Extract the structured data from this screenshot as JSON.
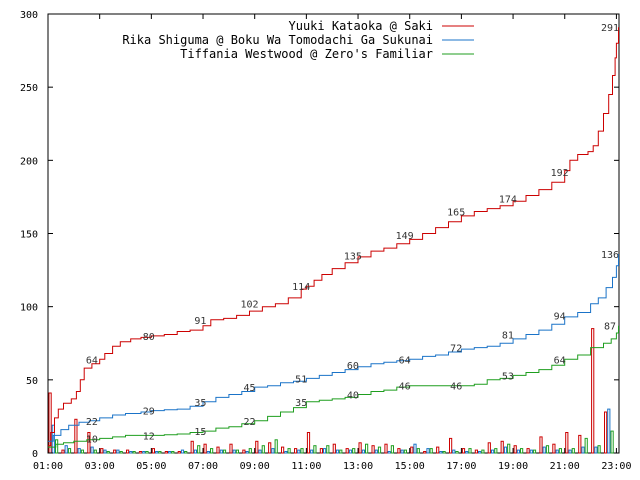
{
  "chart_data": {
    "type": "line",
    "title": "",
    "xlabel": "",
    "ylabel": "",
    "xlim": [
      1,
      23.1
    ],
    "ylim": [
      0,
      300
    ],
    "x_ticks": [
      "01:00",
      "03:00",
      "05:00",
      "07:00",
      "09:00",
      "11:00",
      "13:00",
      "15:00",
      "17:00",
      "19:00",
      "21:00",
      "23:00"
    ],
    "y_ticks": [
      "0",
      "50",
      "100",
      "150",
      "200",
      "250",
      "300"
    ],
    "legend_position": "top-right",
    "grid": false,
    "series": [
      {
        "name": "Yuuki Kataoka @ Saki",
        "color": "#cc0000",
        "points": [
          [
            1.0,
            5
          ],
          [
            1.1,
            14
          ],
          [
            1.25,
            24
          ],
          [
            1.4,
            30
          ],
          [
            1.6,
            34
          ],
          [
            1.9,
            37
          ],
          [
            2.1,
            42
          ],
          [
            2.25,
            50
          ],
          [
            2.4,
            58
          ],
          [
            2.7,
            61
          ],
          [
            3.0,
            64
          ],
          [
            3.2,
            68
          ],
          [
            3.5,
            73
          ],
          [
            3.8,
            76
          ],
          [
            4.2,
            78
          ],
          [
            4.6,
            79
          ],
          [
            5.0,
            80
          ],
          [
            5.5,
            81
          ],
          [
            6.0,
            83
          ],
          [
            6.5,
            84
          ],
          [
            7.0,
            87
          ],
          [
            7.3,
            91
          ],
          [
            7.8,
            92
          ],
          [
            8.3,
            94
          ],
          [
            8.8,
            97
          ],
          [
            9.3,
            100
          ],
          [
            9.8,
            102
          ],
          [
            10.3,
            106
          ],
          [
            10.8,
            112
          ],
          [
            11.0,
            114
          ],
          [
            11.3,
            118
          ],
          [
            11.6,
            122
          ],
          [
            12.0,
            126
          ],
          [
            12.5,
            130
          ],
          [
            13.0,
            134
          ],
          [
            13.5,
            138
          ],
          [
            14.0,
            140
          ],
          [
            14.5,
            143
          ],
          [
            15.0,
            146
          ],
          [
            15.5,
            150
          ],
          [
            16.0,
            154
          ],
          [
            16.5,
            158
          ],
          [
            17.0,
            162
          ],
          [
            17.5,
            165
          ],
          [
            18.0,
            167
          ],
          [
            18.5,
            169
          ],
          [
            19.0,
            172
          ],
          [
            19.5,
            176
          ],
          [
            20.0,
            180
          ],
          [
            20.5,
            185
          ],
          [
            21.0,
            193
          ],
          [
            21.2,
            200
          ],
          [
            21.5,
            204
          ],
          [
            21.9,
            206
          ],
          [
            22.1,
            210
          ],
          [
            22.3,
            220
          ],
          [
            22.5,
            232
          ],
          [
            22.7,
            245
          ],
          [
            22.85,
            258
          ],
          [
            22.95,
            270
          ],
          [
            23.0,
            280
          ],
          [
            23.08,
            291
          ]
        ]
      },
      {
        "name": "Rika Shiguma @ Boku Wa Tomodachi Ga Sukunai",
        "color": "#1a73c8",
        "points": [
          [
            1.0,
            8
          ],
          [
            1.2,
            12
          ],
          [
            1.5,
            16
          ],
          [
            1.8,
            19
          ],
          [
            2.2,
            21
          ],
          [
            2.6,
            22
          ],
          [
            3.0,
            24
          ],
          [
            3.5,
            26
          ],
          [
            4.0,
            27
          ],
          [
            4.6,
            28
          ],
          [
            5.0,
            29
          ],
          [
            5.5,
            29.5
          ],
          [
            6.0,
            30
          ],
          [
            6.5,
            32
          ],
          [
            7.0,
            35
          ],
          [
            7.5,
            38
          ],
          [
            8.0,
            40
          ],
          [
            8.5,
            42
          ],
          [
            9.0,
            45
          ],
          [
            9.5,
            46
          ],
          [
            10.0,
            48
          ],
          [
            10.5,
            49
          ],
          [
            11.0,
            51
          ],
          [
            11.5,
            53
          ],
          [
            12.0,
            55
          ],
          [
            12.5,
            57
          ],
          [
            13.0,
            59
          ],
          [
            13.5,
            61
          ],
          [
            14.0,
            62
          ],
          [
            14.5,
            63
          ],
          [
            15.0,
            64
          ],
          [
            15.5,
            66
          ],
          [
            16.0,
            67
          ],
          [
            16.5,
            69
          ],
          [
            17.0,
            71
          ],
          [
            17.5,
            72
          ],
          [
            18.0,
            73
          ],
          [
            18.5,
            75
          ],
          [
            19.0,
            78
          ],
          [
            19.5,
            81
          ],
          [
            20.0,
            84
          ],
          [
            20.5,
            88
          ],
          [
            21.0,
            93
          ],
          [
            21.5,
            96
          ],
          [
            22.0,
            102
          ],
          [
            22.3,
            106
          ],
          [
            22.6,
            113
          ],
          [
            22.85,
            120
          ],
          [
            23.0,
            128
          ],
          [
            23.08,
            136
          ]
        ]
      },
      {
        "name": "Tiffania Westwood @ Zero's Familiar",
        "color": "#1f9e1f",
        "points": [
          [
            1.0,
            4
          ],
          [
            1.3,
            6
          ],
          [
            1.6,
            7
          ],
          [
            2.0,
            8
          ],
          [
            2.5,
            9
          ],
          [
            3.0,
            10
          ],
          [
            3.5,
            11
          ],
          [
            4.0,
            12
          ],
          [
            4.5,
            12
          ],
          [
            5.0,
            12
          ],
          [
            5.5,
            12.5
          ],
          [
            6.0,
            13
          ],
          [
            6.5,
            14
          ],
          [
            7.0,
            15
          ],
          [
            7.5,
            17
          ],
          [
            8.0,
            18
          ],
          [
            8.5,
            20
          ],
          [
            9.0,
            22
          ],
          [
            9.5,
            25
          ],
          [
            10.0,
            28
          ],
          [
            10.5,
            31
          ],
          [
            11.0,
            35
          ],
          [
            11.5,
            36
          ],
          [
            12.0,
            37
          ],
          [
            12.5,
            38
          ],
          [
            13.0,
            40
          ],
          [
            13.5,
            42
          ],
          [
            14.0,
            43
          ],
          [
            14.5,
            45
          ],
          [
            15.0,
            46
          ],
          [
            15.5,
            46
          ],
          [
            16.0,
            46
          ],
          [
            16.5,
            46
          ],
          [
            17.0,
            46
          ],
          [
            17.5,
            47
          ],
          [
            18.0,
            50
          ],
          [
            18.5,
            51
          ],
          [
            19.0,
            53
          ],
          [
            19.5,
            55
          ],
          [
            20.0,
            57
          ],
          [
            20.5,
            60
          ],
          [
            21.0,
            64
          ],
          [
            21.5,
            67
          ],
          [
            22.0,
            72
          ],
          [
            22.5,
            75
          ],
          [
            22.8,
            78
          ],
          [
            23.0,
            82
          ],
          [
            23.08,
            87
          ]
        ]
      }
    ],
    "data_labels": [
      {
        "series": 0,
        "x": 2.7,
        "y": 64,
        "text": "64"
      },
      {
        "series": 0,
        "x": 4.9,
        "y": 80,
        "text": "80"
      },
      {
        "series": 0,
        "x": 6.9,
        "y": 91,
        "text": "91"
      },
      {
        "series": 0,
        "x": 8.8,
        "y": 102,
        "text": "102"
      },
      {
        "series": 0,
        "x": 10.8,
        "y": 114,
        "text": "114"
      },
      {
        "series": 0,
        "x": 12.8,
        "y": 135,
        "text": "135"
      },
      {
        "series": 0,
        "x": 14.8,
        "y": 149,
        "text": "149"
      },
      {
        "series": 0,
        "x": 16.8,
        "y": 165,
        "text": "165"
      },
      {
        "series": 0,
        "x": 18.8,
        "y": 174,
        "text": "174"
      },
      {
        "series": 0,
        "x": 20.8,
        "y": 192,
        "text": "192"
      },
      {
        "series": 0,
        "x": 22.75,
        "y": 291,
        "text": "291"
      },
      {
        "series": 1,
        "x": 2.7,
        "y": 22,
        "text": "22"
      },
      {
        "series": 1,
        "x": 4.9,
        "y": 29,
        "text": "29"
      },
      {
        "series": 1,
        "x": 6.9,
        "y": 35,
        "text": "35"
      },
      {
        "series": 1,
        "x": 8.8,
        "y": 45,
        "text": "45"
      },
      {
        "series": 1,
        "x": 10.8,
        "y": 51,
        "text": "51"
      },
      {
        "series": 1,
        "x": 12.8,
        "y": 60,
        "text": "60"
      },
      {
        "series": 1,
        "x": 14.8,
        "y": 64,
        "text": "64"
      },
      {
        "series": 1,
        "x": 16.8,
        "y": 72,
        "text": "72"
      },
      {
        "series": 1,
        "x": 18.8,
        "y": 81,
        "text": "81"
      },
      {
        "series": 1,
        "x": 20.8,
        "y": 94,
        "text": "94"
      },
      {
        "series": 1,
        "x": 22.75,
        "y": 136,
        "text": "136"
      },
      {
        "series": 2,
        "x": 2.7,
        "y": 10,
        "text": "10"
      },
      {
        "series": 2,
        "x": 4.9,
        "y": 12,
        "text": "12"
      },
      {
        "series": 2,
        "x": 6.9,
        "y": 15,
        "text": "15"
      },
      {
        "series": 2,
        "x": 8.8,
        "y": 22,
        "text": "22"
      },
      {
        "series": 2,
        "x": 10.8,
        "y": 35,
        "text": "35"
      },
      {
        "series": 2,
        "x": 12.8,
        "y": 40,
        "text": "40"
      },
      {
        "series": 2,
        "x": 14.8,
        "y": 46,
        "text": "46"
      },
      {
        "series": 2,
        "x": 16.8,
        "y": 46,
        "text": "46"
      },
      {
        "series": 2,
        "x": 18.8,
        "y": 53,
        "text": "53"
      },
      {
        "series": 2,
        "x": 20.8,
        "y": 64,
        "text": "64"
      },
      {
        "series": 2,
        "x": 22.75,
        "y": 87,
        "text": "87"
      }
    ],
    "hourly_bars": {
      "x_start": [
        1.0,
        1.5,
        2.0,
        2.5,
        3.0,
        3.5,
        4.0,
        4.5,
        5.0,
        5.5,
        6.0,
        6.5,
        7.0,
        7.5,
        8.0,
        8.5,
        9.0,
        9.5,
        10.0,
        10.5,
        11.0,
        11.5,
        12.0,
        12.5,
        13.0,
        13.5,
        14.0,
        14.5,
        15.0,
        15.5,
        16.0,
        16.5,
        17.0,
        17.5,
        18.0,
        18.5,
        19.0,
        19.5,
        20.0,
        20.5,
        21.0,
        21.5,
        22.0,
        22.5
      ],
      "series": [
        {
          "series": 0,
          "values": [
            41,
            2,
            23,
            14,
            3,
            2,
            2,
            1,
            3,
            1,
            1,
            8,
            6,
            4,
            6,
            2,
            8,
            7,
            4,
            3,
            14,
            3,
            6,
            3,
            7,
            5,
            6,
            3,
            4,
            1,
            4,
            10,
            3,
            2,
            7,
            8,
            5,
            3,
            11,
            6,
            14,
            12,
            85,
            28
          ]
        },
        {
          "series": 1,
          "values": [
            19,
            5,
            3,
            4,
            2,
            2,
            1,
            1,
            1,
            1,
            2,
            2,
            1,
            2,
            2,
            1,
            2,
            3,
            1,
            2,
            2,
            3,
            2,
            2,
            2,
            2,
            1,
            2,
            6,
            3,
            1,
            2,
            1,
            1,
            2,
            4,
            2,
            2,
            4,
            2,
            2,
            4,
            4,
            30
          ]
        },
        {
          "series": 2,
          "values": [
            9,
            3,
            2,
            2,
            1,
            1,
            1,
            1,
            1,
            1,
            1,
            5,
            3,
            2,
            2,
            3,
            5,
            9,
            3,
            3,
            5,
            5,
            2,
            3,
            6,
            4,
            5,
            2,
            3,
            3,
            1,
            1,
            3,
            2,
            3,
            6,
            3,
            2,
            5,
            3,
            3,
            10,
            5,
            15
          ]
        }
      ]
    }
  }
}
